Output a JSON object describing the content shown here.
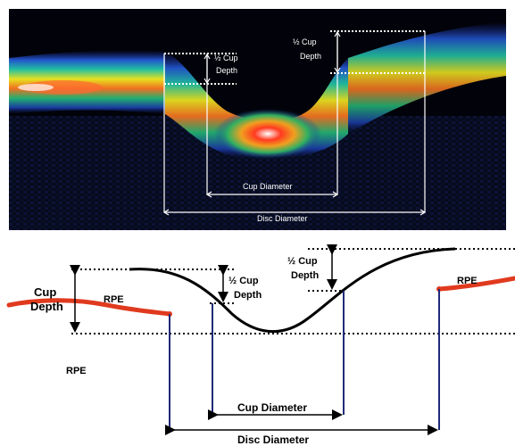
{
  "oct_image": {
    "labels": {
      "half_cup_depth_left": "½ Cup",
      "half_cup_depth_left_2": "Depth",
      "half_cup_depth_right": "½ Cup",
      "half_cup_depth_right_2": "Depth",
      "cup_diameter": "Cup Diameter",
      "disc_diameter": "Disc Diameter"
    }
  },
  "schematic": {
    "labels": {
      "cup_depth_1": "Cup",
      "cup_depth_2": "Depth",
      "rpe_left_curve": "RPE",
      "rpe_below": "RPE",
      "rpe_right": "RPE",
      "half_cup_depth_left_1": "½ Cup",
      "half_cup_depth_left_2": "Depth",
      "half_cup_depth_right_1": "½ Cup",
      "half_cup_depth_right_2": "Depth",
      "cup_diameter": "Cup Diameter",
      "disc_diameter": "Disc Diameter"
    }
  },
  "colors": {
    "rpe_line": "#e03a1e",
    "disc_verticals": "#1f2a7a",
    "cup_curve": "#000000",
    "oct_background": "#000000"
  }
}
